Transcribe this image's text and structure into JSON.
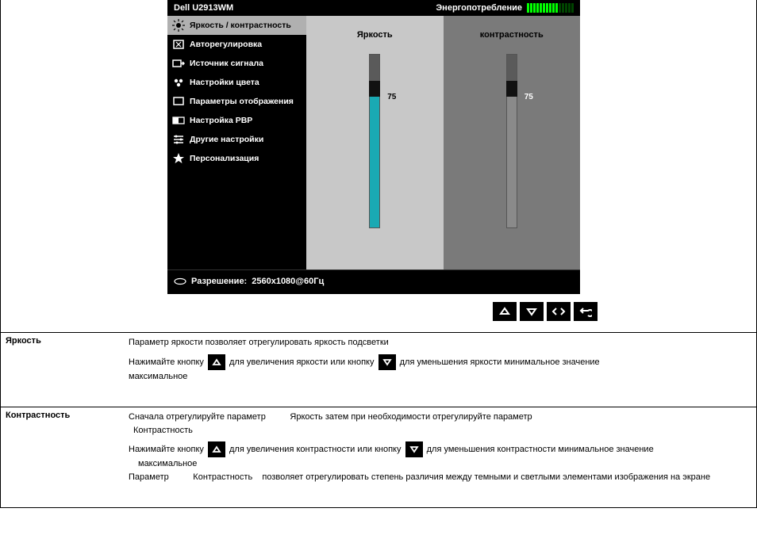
{
  "osd": {
    "model": "Dell U2913WM",
    "energy_label": "Энергопотребление",
    "energy_bars_green": 10,
    "energy_bars_total": 15,
    "color_green": "#00ff00",
    "color_dim": "#004400",
    "menu": {
      "active_index": 0,
      "items": [
        {
          "label": "Яркость / контрастность",
          "icon": "brightness"
        },
        {
          "label": "Авторегулировка",
          "icon": "auto"
        },
        {
          "label": "Источник сигнала",
          "icon": "input"
        },
        {
          "label": "Настройки цвета",
          "icon": "color"
        },
        {
          "label": "Параметры отображения",
          "icon": "display"
        },
        {
          "label": "Настройка PBP",
          "icon": "pbp"
        },
        {
          "label": "Другие настройки",
          "icon": "other"
        },
        {
          "label": "Персонализация",
          "icon": "star"
        }
      ]
    },
    "panels": {
      "brightness": {
        "title": "Яркость",
        "value": 75,
        "max": 100,
        "fill_color": "#1aa9b3",
        "track_bg": "#5a5a5a",
        "value_color": "#000000"
      },
      "contrast": {
        "title": "контрастность",
        "value": 75,
        "max": 100,
        "fill_color": "#8a8a8a",
        "track_bg": "#5a5a5a",
        "value_color": "#ffffff"
      }
    },
    "footer": {
      "resolution_label": "Разрешение:",
      "resolution_value": "2560x1080@60Гц"
    },
    "panel_light_bg": "#c8c8c8",
    "panel_dark_bg": "#7a7a7a"
  },
  "descriptions": {
    "brightness": {
      "label": "Яркость",
      "line1": "Параметр яркости позволяет отрегулировать яркость подсветки",
      "line2a": "Нажимайте кнопку",
      "line2b": "для увеличения яркости или кнопку",
      "line2c": "для уменьшения яркости   минимальное значение",
      "line3": "максимальное"
    },
    "contrast": {
      "label": "Контрастность",
      "line1a": "Сначала отрегулируйте параметр",
      "line1b": "Яркость   затем при необходимости отрегулируйте параметр",
      "line1c": "Контрастность",
      "line2a": "Нажимайте кнопку",
      "line2b": "для увеличения контрастности или кнопку",
      "line2c": "для уменьшения контрастности   минимальное значение",
      "line3": "максимальное",
      "line4a": "Параметр",
      "line4b": "Контрастность",
      "line4c": "позволяет отрегулировать степень различия между темными и светлыми элементами изображения на экране"
    }
  }
}
